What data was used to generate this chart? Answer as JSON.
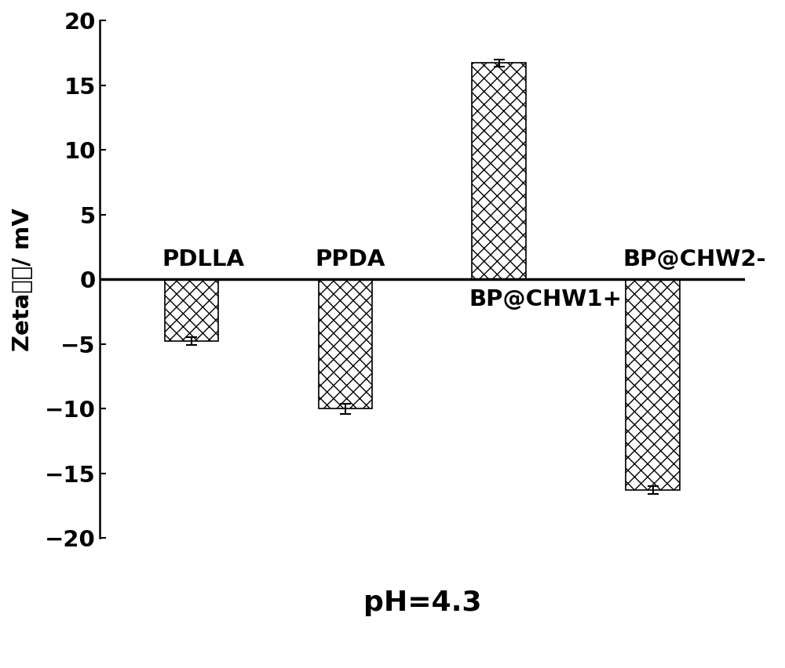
{
  "categories": [
    "PDLLA",
    "PPDA",
    "BP@CHW1+",
    "BP@CHW2-"
  ],
  "values": [
    -4.8,
    -10.0,
    16.7,
    -16.3
  ],
  "errors": [
    0.3,
    0.4,
    0.3,
    0.3
  ],
  "bar_color": "#ffffff",
  "bar_edgecolor": "#000000",
  "hatch": "xx",
  "ylim": [
    -20,
    20
  ],
  "yticks": [
    -20,
    -15,
    -10,
    -5,
    0,
    5,
    10,
    15,
    20
  ],
  "ylabel": "Zeta电位/ mV",
  "xlabel_bottom": "pH=4.3",
  "bar_width": 0.35,
  "label_fontsize": 21,
  "tick_fontsize": 21,
  "xlabel_fontsize": 26,
  "ylabel_fontsize": 21,
  "background_color": "#ffffff",
  "x_positions": [
    0.7,
    1.7,
    2.7,
    3.7
  ]
}
